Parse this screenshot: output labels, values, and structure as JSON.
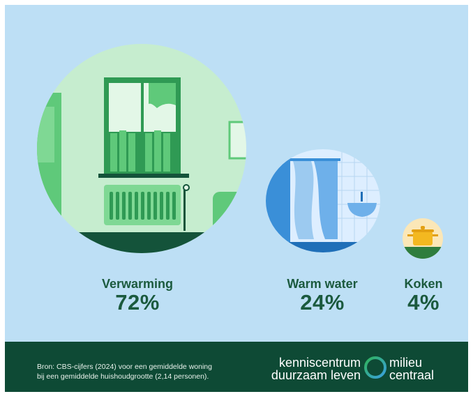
{
  "categories": [
    {
      "name": "Verwarming",
      "percent": "72%",
      "icon": "radiator-window-icon"
    },
    {
      "name": "Warm water",
      "percent": "24%",
      "icon": "shower-icon"
    },
    {
      "name": "Koken",
      "percent": "4%",
      "icon": "cooking-pot-icon"
    }
  ],
  "footer": {
    "source_line1": "Bron: CBS-cijfers (2024) voor een gemiddelde woning",
    "source_line2": "bij een gemiddelde huishoudgrootte (2,14 personen).",
    "brand_left_line1": "kenniscentrum",
    "brand_left_line2": "duurzaam leven",
    "brand_right_line1": "milieu",
    "brand_right_line2": "centraal",
    "logo_icon": "ring-logo-icon"
  },
  "colors": {
    "background": "#bddff5",
    "footer": "#0e4a35",
    "label_text": "#1b5a3e",
    "heating_circle": "#c6edcf",
    "water_circle": "#ddeeff",
    "cooking_circle": "#fbe7b7",
    "logo_ring_start": "#2fb35a",
    "logo_ring_end": "#3aa0e0"
  }
}
